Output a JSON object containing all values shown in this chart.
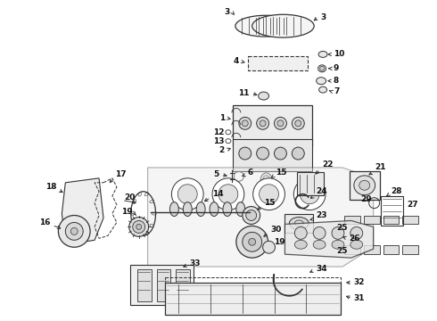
{
  "background_color": "#ffffff",
  "figsize": [
    4.9,
    3.6
  ],
  "dpi": 100,
  "line_color": "#333333",
  "text_color": "#111111",
  "font_size": 6.5
}
